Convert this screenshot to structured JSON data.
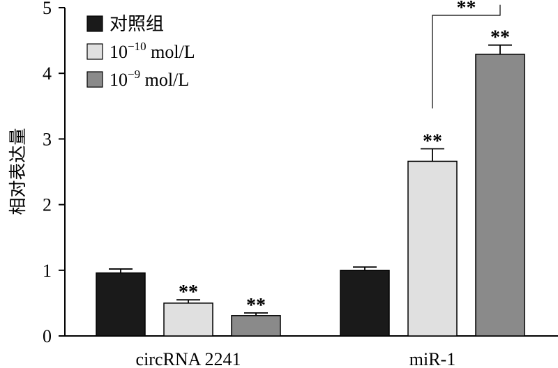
{
  "chart_data": {
    "type": "bar",
    "title": "",
    "xlabel": "",
    "ylabel": "相对表达量",
    "ylim": [
      0,
      5
    ],
    "yticks": [
      "0",
      "1",
      "2",
      "3",
      "4",
      "5"
    ],
    "categories": [
      "circRNA 2241",
      "miR-1"
    ],
    "series": [
      {
        "name": "对照组",
        "color": "#1a1a1a",
        "values": [
          0.96,
          1.0
        ],
        "errors": [
          0.06,
          0.05
        ],
        "annotations": [
          "",
          ""
        ]
      },
      {
        "name_base": "10",
        "name_exp": "−10",
        "name_unit": " mol/L",
        "color": "#e0e0e0",
        "values": [
          0.5,
          2.66
        ],
        "errors": [
          0.05,
          0.19
        ],
        "annotations": [
          "**",
          "**"
        ]
      },
      {
        "name_base": "10",
        "name_exp": "−9",
        "name_unit": " mol/L",
        "color": "#8a8a8a",
        "values": [
          0.31,
          4.29
        ],
        "errors": [
          0.04,
          0.14
        ],
        "annotations": [
          "**",
          "**"
        ]
      }
    ],
    "bracket": {
      "category": 1,
      "from_series": 1,
      "to_series": 2,
      "label": "**"
    },
    "legend": "top-left",
    "grid": false
  }
}
